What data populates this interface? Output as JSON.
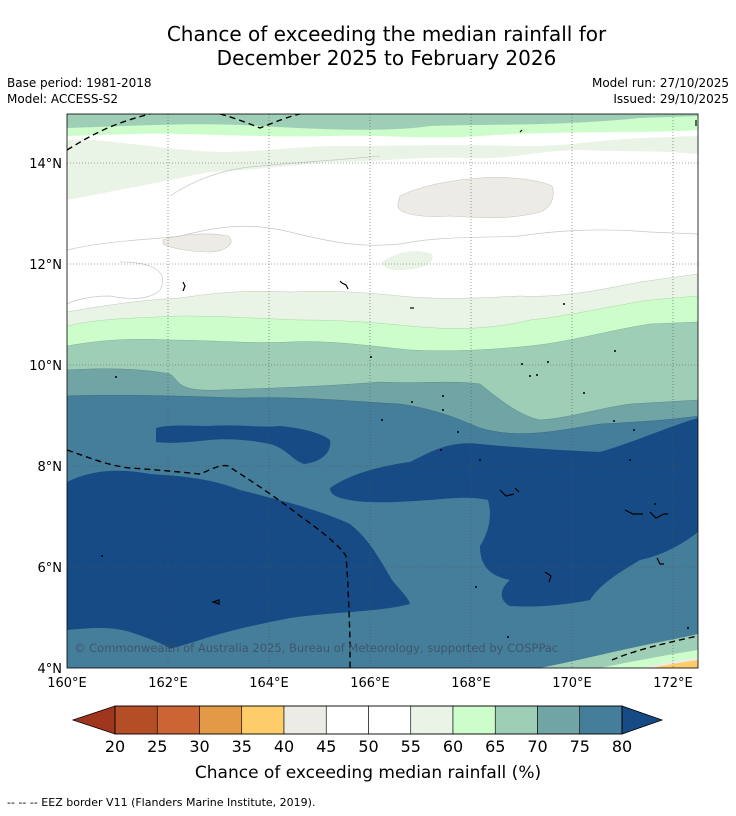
{
  "title": {
    "line1": "Chance of exceeding the median rainfall for",
    "line2": "December 2025 to February 2026"
  },
  "meta": {
    "base_period": "Base period: 1981-2018",
    "model": "Model: ACCESS-S2",
    "model_run": "Model run: 27/10/2025",
    "issued": "Issued: 29/10/2025"
  },
  "map": {
    "lat_labels": [
      "14°N",
      "12°N",
      "10°N",
      "8°N",
      "6°N",
      "4°N"
    ],
    "lon_labels": [
      "160°E",
      "162°E",
      "164°E",
      "166°E",
      "168°E",
      "170°E",
      "172°E"
    ],
    "watermark": "© Commonwealth of Australia 2025, Bureau of Meteorology, supported by COSPPac"
  },
  "colorbar": {
    "title": "Chance of exceeding median rainfall (%)",
    "ticks": [
      "20",
      "25",
      "30",
      "35",
      "40",
      "45",
      "50",
      "55",
      "60",
      "65",
      "70",
      "75",
      "80"
    ],
    "colors": {
      "lt20": "#a0361e",
      "c20_25": "#b54d27",
      "c25_30": "#cc6533",
      "c30_35": "#e39946",
      "c35_40": "#fecd6a",
      "c40_45": "#edebe6",
      "c45_50": "#ffffff",
      "c50_55": "#ffffff",
      "c55_60": "#e9f4e6",
      "c60_65": "#ccfdcb",
      "c65_70": "#9ecfb6",
      "c70_75": "#71a4a5",
      "c75_80": "#457e9b",
      "gt80": "#164b85"
    }
  },
  "footer": {
    "eez_legend": "-- -- -- EEZ border V11 (Flanders Marine Institute, 2019)."
  }
}
